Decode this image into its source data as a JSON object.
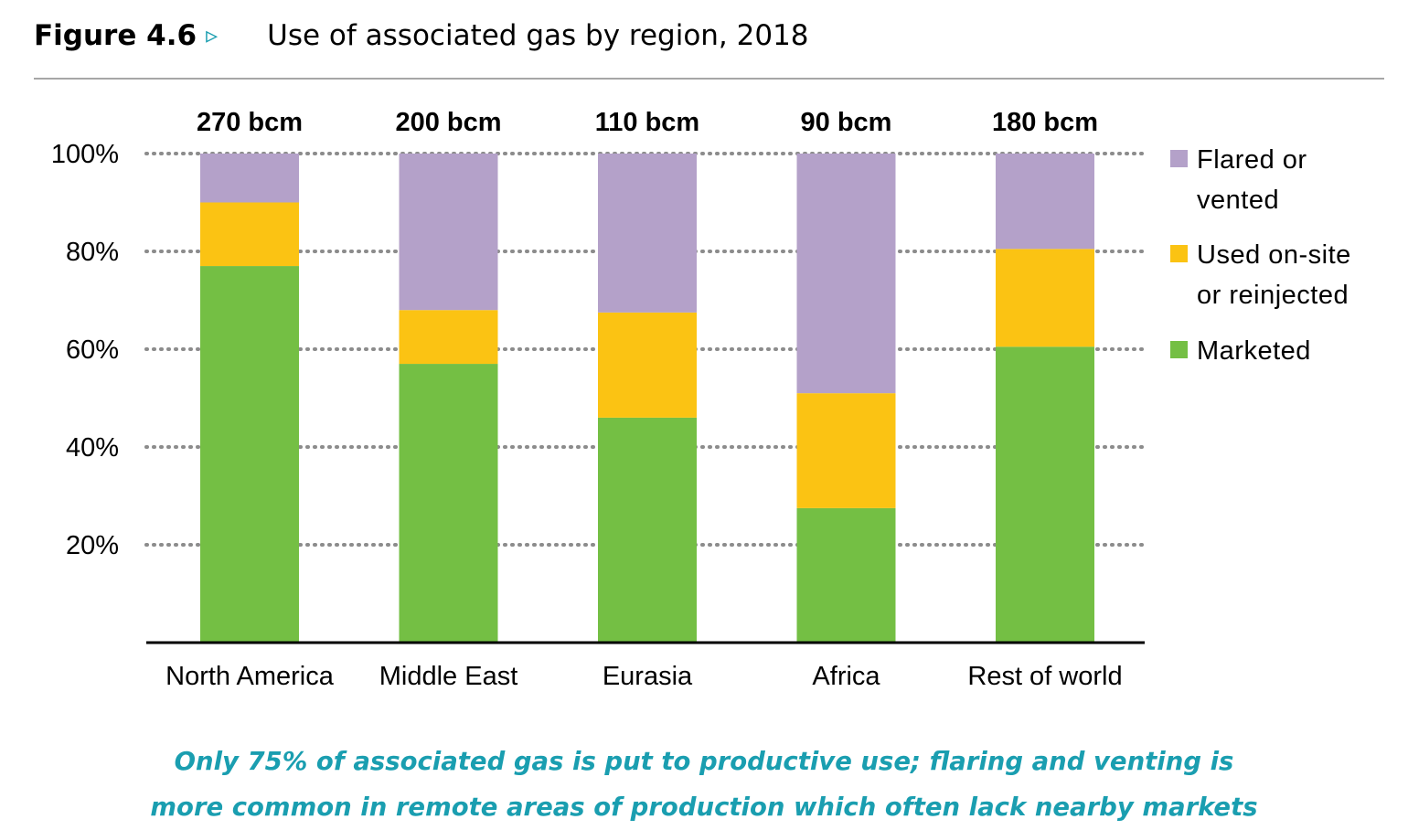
{
  "figure": {
    "label": "Figure 4.6",
    "arrow_glyph": "▹",
    "title": "Use of associated gas by region, 2018"
  },
  "colors": {
    "accent": "#1a9eb0",
    "marketed": "#74bf44",
    "used_on_site": "#fbc313",
    "flared": "#b4a1c9",
    "gridline": "#8c8c8c",
    "axis": "#000000",
    "rule": "#a6a6a6"
  },
  "chart_data": {
    "type": "bar",
    "stacked": true,
    "title": "Use of associated gas by region, 2018",
    "categories": [
      "North America",
      "Middle East",
      "Eurasia",
      "Africa",
      "Rest of world"
    ],
    "totals": [
      "270 bcm",
      "200 bcm",
      "110 bcm",
      "90 bcm",
      "180 bcm"
    ],
    "series": [
      {
        "name": "Marketed",
        "color": "#74bf44",
        "values": [
          77,
          57,
          46,
          27.5,
          60.5
        ]
      },
      {
        "name": "Used on-site or reinjected",
        "color": "#fbc313",
        "values": [
          13,
          11,
          21.5,
          23.5,
          20
        ]
      },
      {
        "name": "Flared or vented",
        "color": "#b4a1c9",
        "values": [
          10,
          32,
          32.5,
          49,
          19.5
        ]
      }
    ],
    "legend": [
      {
        "name": "Flared or vented",
        "lines": [
          "Flared or",
          "vented"
        ],
        "color": "#b4a1c9"
      },
      {
        "name": "Used on-site or reinjected",
        "lines": [
          "Used on-site",
          "or reinjected"
        ],
        "color": "#fbc313"
      },
      {
        "name": "Marketed",
        "lines": [
          "Marketed"
        ],
        "color": "#74bf44"
      }
    ],
    "legend_position": "right",
    "yticks": [
      20,
      40,
      60,
      80,
      100
    ],
    "ytick_labels": [
      "20%",
      "40%",
      "60%",
      "80%",
      "100%"
    ],
    "ylim": [
      0,
      100
    ],
    "grid": true,
    "xlabel": "",
    "ylabel": ""
  },
  "caption": {
    "line1": "Only 75% of associated gas is put to productive use; flaring and venting is",
    "line2": "more common in remote areas of production which often lack nearby markets"
  }
}
